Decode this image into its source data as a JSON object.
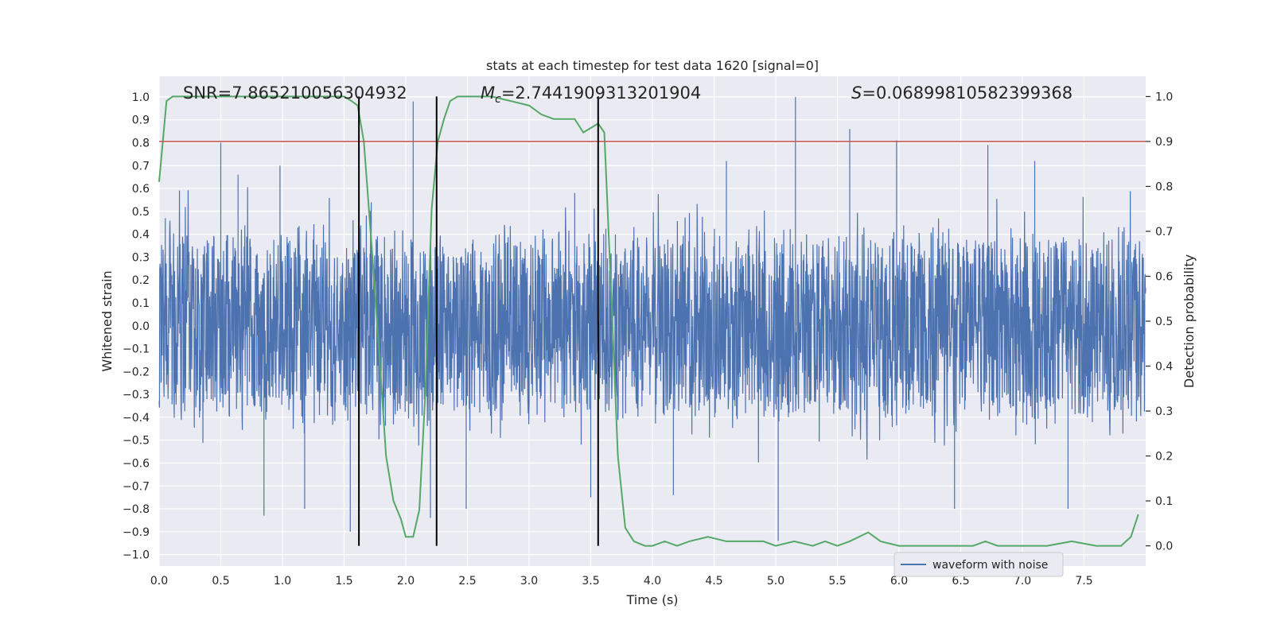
{
  "chart_data": {
    "type": "line",
    "title": "stats at each timestep for test data 1620 [signal=0]",
    "xlabel": "Time (s)",
    "ylabel": "Whitened strain",
    "y2label": "Detection probability",
    "xlim": [
      0.0,
      8.0
    ],
    "ylim": [
      -1.05,
      1.09
    ],
    "y2lim": [
      -0.045,
      1.045
    ],
    "x_ticks": [
      0.0,
      0.5,
      1.0,
      1.5,
      2.0,
      2.5,
      3.0,
      3.5,
      4.0,
      4.5,
      5.0,
      5.5,
      6.0,
      6.5,
      7.0,
      7.5
    ],
    "y_ticks": [
      1.0,
      0.9,
      0.8,
      0.7,
      0.6,
      0.5,
      0.4,
      0.3,
      0.2,
      0.1,
      0.0,
      -0.1,
      -0.2,
      -0.3,
      -0.4,
      -0.5,
      -0.6,
      -0.7,
      -0.8,
      -0.9,
      -1.0
    ],
    "y2_ticks": [
      1.0,
      0.9,
      0.8,
      0.7,
      0.6,
      0.5,
      0.4,
      0.3,
      0.2,
      0.1,
      0.0
    ],
    "grid": true,
    "legend": {
      "placement": "lower-right",
      "entries": [
        "waveform with noise"
      ]
    },
    "annotations": {
      "snr": "SNR=7.865210056304932",
      "mc": "=2.7441909313201904",
      "s": "=0.06899810582399368"
    },
    "threshold_line": {
      "axis": "right",
      "value": 0.9,
      "color": "#c44e52"
    },
    "vertical_lines": [
      1.62,
      2.25,
      3.56
    ],
    "series": [
      {
        "name": "waveform with noise",
        "axis": "left",
        "color": "#4c72b0",
        "render": "dense-noise",
        "t_range": [
          0.0,
          8.0
        ],
        "amplitude_envelope": [
          0.33,
          0.45
        ],
        "peaks": [
          [
            0.05,
            0.47
          ],
          [
            0.5,
            0.8
          ],
          [
            0.64,
            0.66
          ],
          [
            0.85,
            -0.83
          ],
          [
            0.98,
            0.7
          ],
          [
            1.18,
            -0.8
          ],
          [
            1.55,
            -0.9
          ],
          [
            1.72,
            0.54
          ],
          [
            2.06,
            0.98
          ],
          [
            2.2,
            -0.84
          ],
          [
            2.49,
            -0.8
          ],
          [
            3.37,
            0.58
          ],
          [
            3.5,
            -0.75
          ],
          [
            4.17,
            -0.74
          ],
          [
            4.6,
            0.72
          ],
          [
            5.02,
            -0.94
          ],
          [
            5.16,
            1.0
          ],
          [
            5.6,
            0.86
          ],
          [
            5.98,
            0.81
          ],
          [
            6.45,
            -0.8
          ],
          [
            6.72,
            0.79
          ],
          [
            7.1,
            0.72
          ],
          [
            7.37,
            -0.8
          ]
        ]
      },
      {
        "name": "",
        "axis": "right",
        "color": "#55a868",
        "x": [
          0.0,
          0.06,
          0.11,
          0.2,
          0.4,
          0.6,
          0.8,
          1.0,
          1.2,
          1.4,
          1.5,
          1.56,
          1.61,
          1.66,
          1.72,
          1.78,
          1.84,
          1.9,
          1.96,
          2.0,
          2.06,
          2.11,
          2.16,
          2.21,
          2.26,
          2.31,
          2.36,
          2.42,
          2.5,
          2.7,
          2.85,
          3.0,
          3.1,
          3.2,
          3.3,
          3.37,
          3.44,
          3.5,
          3.56,
          3.61,
          3.66,
          3.72,
          3.78,
          3.85,
          3.94,
          4.0,
          4.1,
          4.2,
          4.3,
          4.45,
          4.6,
          4.75,
          4.9,
          5.0,
          5.15,
          5.3,
          5.4,
          5.5,
          5.6,
          5.75,
          5.85,
          6.0,
          6.2,
          6.4,
          6.6,
          6.7,
          6.8,
          7.0,
          7.2,
          7.4,
          7.6,
          7.8,
          7.88,
          7.94
        ],
        "values": [
          0.81,
          0.99,
          1.0,
          1.0,
          1.0,
          1.0,
          1.0,
          1.0,
          1.0,
          1.0,
          1.0,
          0.99,
          0.98,
          0.9,
          0.68,
          0.45,
          0.2,
          0.1,
          0.06,
          0.02,
          0.02,
          0.08,
          0.35,
          0.75,
          0.9,
          0.95,
          0.99,
          1.0,
          1.0,
          1.0,
          0.99,
          0.98,
          0.96,
          0.95,
          0.95,
          0.95,
          0.92,
          0.93,
          0.94,
          0.92,
          0.6,
          0.2,
          0.04,
          0.01,
          0.0,
          0.0,
          0.01,
          0.0,
          0.01,
          0.02,
          0.01,
          0.01,
          0.01,
          0.0,
          0.01,
          0.0,
          0.01,
          0.0,
          0.01,
          0.03,
          0.01,
          0.0,
          0.0,
          0.0,
          0.0,
          0.01,
          0.0,
          0.0,
          0.0,
          0.01,
          0.0,
          0.0,
          0.02,
          0.07
        ]
      }
    ]
  }
}
